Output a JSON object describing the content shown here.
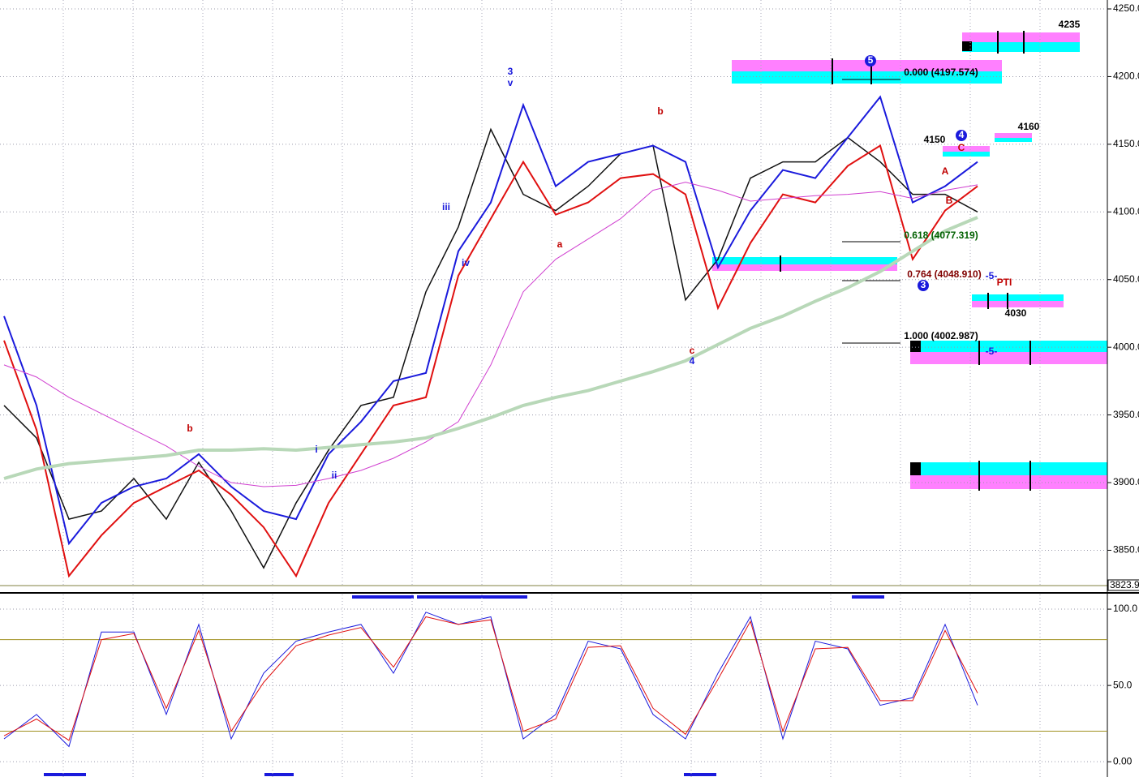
{
  "chart_data": [
    {
      "type": "line",
      "categories": [
        null,
        null,
        null,
        null,
        null,
        null,
        null,
        null,
        null,
        null,
        null,
        null,
        null,
        null,
        null,
        null,
        null,
        null,
        null,
        null,
        null,
        null,
        null,
        null,
        null,
        null,
        null,
        null,
        null,
        null,
        null
      ],
      "series": [
        {
          "color": "#111111",
          "values": [
            3957,
            3933,
            3873,
            3879,
            3903,
            3873,
            3915,
            3879,
            3837,
            3885,
            3924,
            3957,
            3963,
            4041,
            4089,
            4161,
            4113,
            4101,
            4119,
            4143,
            4149,
            4035,
            4065,
            4125,
            4137,
            4137,
            4155,
            4137,
            4113,
            4113,
            4100
          ]
        },
        {
          "color": "#1a1adc",
          "values": [
            4023,
            3957,
            3855,
            3885,
            3897,
            3903,
            3921,
            3897,
            3879,
            3873,
            3921,
            3945,
            3975,
            3981,
            4071,
            4107,
            4179,
            4119,
            4137,
            4143,
            4149,
            4137,
            4059,
            4101,
            4131,
            4125,
            4155,
            4185,
            4107,
            4119,
            4137
          ]
        },
        {
          "color": "#e01010",
          "values": [
            4005,
            3939,
            3831,
            3861,
            3885,
            3897,
            3909,
            3891,
            3867,
            3831,
            3885,
            3921,
            3957,
            3963,
            4053,
            4095,
            4137,
            4098,
            4107,
            4125,
            4128,
            4113,
            4029,
            4077,
            4113,
            4107,
            4134,
            4149,
            4065,
            4101,
            4119
          ]
        },
        {
          "color": "#d040d0",
          "values": [
            3987,
            3978,
            3963,
            3951,
            3939,
            3927,
            3912,
            3900,
            3897,
            3898,
            3903,
            3909,
            3918,
            3930,
            3945,
            3987,
            4041,
            4065,
            4080,
            4095,
            4116,
            4122,
            4116,
            4108,
            4110,
            4112,
            4113,
            4115,
            4110,
            4116,
            4120
          ]
        },
        {
          "color": "#b8d8b8",
          "values": [
            3903,
            3910,
            3914,
            3916,
            3918,
            3920,
            3924,
            3924,
            3925,
            3924,
            3926,
            3928,
            3930,
            3933,
            3940,
            3948,
            3957,
            3963,
            3968,
            3975,
            3982,
            3990,
            4002,
            4014,
            4023,
            4034,
            4044,
            4056,
            4071,
            4086,
            4096
          ]
        }
      ],
      "ylim": [
        3823.9,
        4256.6
      ],
      "yticks": [
        {
          "value": 3850,
          "label": "3850.0"
        },
        {
          "value": 3900,
          "label": "3900.0"
        },
        {
          "value": 3950,
          "label": "3950.0"
        },
        {
          "value": 4000,
          "label": "4000.0"
        },
        {
          "value": 4050,
          "label": "4050.0"
        },
        {
          "value": 4100,
          "label": "4100.0"
        },
        {
          "value": 4150,
          "label": "4150.0"
        },
        {
          "value": 4200,
          "label": "4200.0"
        },
        {
          "value": 4250,
          "label": "4250.0"
        }
      ],
      "grid": true,
      "annotations": [
        "b",
        "3",
        "v",
        "iii",
        "iv",
        "a",
        "b",
        "c",
        "4",
        "i",
        "ii",
        "5",
        "4",
        "3",
        "A",
        "B",
        "C",
        "4150",
        "4160",
        "4235",
        "4030",
        "0.000 (4197.574)",
        "0.618 (4077.319)",
        "0.764 (4048.910)",
        "1.000 (4002.987)",
        "-5-",
        "-5-",
        "PTI"
      ]
    },
    {
      "type": "line",
      "categories": [
        null,
        null,
        null,
        null,
        null,
        null,
        null,
        null,
        null,
        null,
        null,
        null,
        null,
        null,
        null,
        null,
        null,
        null,
        null,
        null,
        null,
        null,
        null,
        null,
        null,
        null,
        null,
        null,
        null,
        null,
        null
      ],
      "series": [
        {
          "color": "#1a1adc",
          "values": [
            15,
            31,
            10,
            85,
            85,
            31,
            90,
            15,
            58,
            79,
            85,
            90,
            58,
            98,
            90,
            95,
            15,
            31,
            79,
            74,
            31,
            15,
            58,
            95,
            15,
            79,
            74,
            37,
            42,
            90,
            37
          ]
        },
        {
          "color": "#e01010",
          "values": [
            17,
            28,
            14,
            80,
            84,
            35,
            86,
            20,
            52,
            76,
            83,
            88,
            62,
            95,
            90,
            93,
            20,
            28,
            75,
            76,
            35,
            18,
            54,
            92,
            20,
            74,
            75,
            40,
            40,
            86,
            45
          ]
        }
      ],
      "ylim": [
        -10,
        109.6
      ],
      "yticks": [
        {
          "value": 0,
          "label": "0.00"
        },
        {
          "value": 50,
          "label": "50.0"
        },
        {
          "value": 100,
          "label": "100.0"
        }
      ],
      "reference_lines": [
        20,
        80
      ],
      "grid": true
    }
  ]
}
